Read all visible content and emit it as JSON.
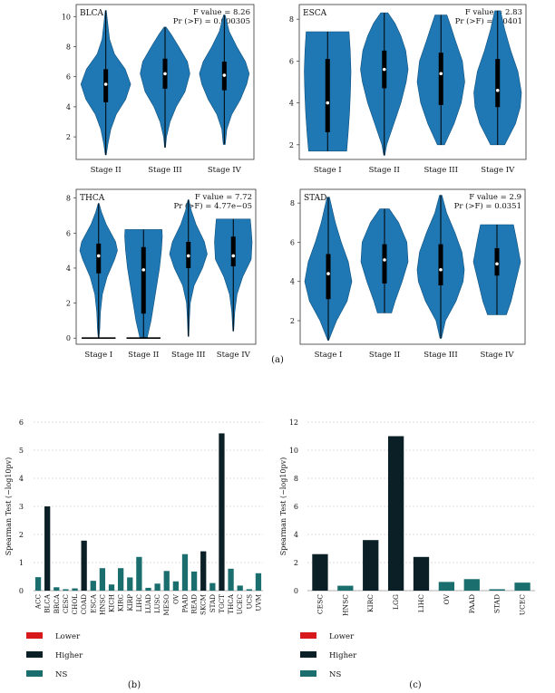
{
  "colors": {
    "violin": "#1f78b4",
    "violin_stroke": "#0d4f7d",
    "box": "#000000",
    "median": "#ffffff",
    "grid": "#bbbbbb",
    "lower": "#d7191c",
    "higher": "#0b1f26",
    "ns": "#1b6e6e"
  },
  "captions": {
    "a": "(a)",
    "b": "(b)",
    "c": "(c)"
  },
  "chart_data": [
    {
      "type": "violin",
      "panel": "BLCA",
      "title": "BLCA",
      "f_label": "F value = 8.26",
      "p_label": "Pr (>F) = 0.000305",
      "ylim": [
        0.5,
        10.8
      ],
      "yticks": [
        2,
        4,
        6,
        8,
        10
      ],
      "categories": [
        "Stage II",
        "Stage III",
        "Stage IV"
      ],
      "groups": [
        {
          "label": "Stage II",
          "min": 0.8,
          "max": 10.4,
          "q1": 4.3,
          "median": 5.5,
          "q3": 6.5,
          "shape": [
            [
              0.8,
              0.02
            ],
            [
              1.5,
              0.08
            ],
            [
              2.5,
              0.2
            ],
            [
              3.5,
              0.42
            ],
            [
              4.5,
              0.8
            ],
            [
              5.5,
              1.0
            ],
            [
              6.5,
              0.78
            ],
            [
              7.5,
              0.35
            ],
            [
              8.5,
              0.15
            ],
            [
              9.5,
              0.08
            ],
            [
              10.4,
              0.02
            ]
          ]
        },
        {
          "label": "Stage III",
          "min": 1.3,
          "max": 9.3,
          "q1": 5.2,
          "median": 6.2,
          "q3": 7.2,
          "shape": [
            [
              1.3,
              0.02
            ],
            [
              2,
              0.06
            ],
            [
              3,
              0.2
            ],
            [
              4,
              0.45
            ],
            [
              5,
              0.8
            ],
            [
              6.2,
              1.0
            ],
            [
              7,
              0.9
            ],
            [
              8,
              0.55
            ],
            [
              8.8,
              0.25
            ],
            [
              9.3,
              0.04
            ]
          ]
        },
        {
          "label": "Stage IV",
          "min": 1.5,
          "max": 10.1,
          "q1": 5.1,
          "median": 6.1,
          "q3": 7.0,
          "shape": [
            [
              1.5,
              0.04
            ],
            [
              2.5,
              0.1
            ],
            [
              3.5,
              0.3
            ],
            [
              4.5,
              0.65
            ],
            [
              5.5,
              0.9
            ],
            [
              6.2,
              1.0
            ],
            [
              7,
              0.85
            ],
            [
              8,
              0.5
            ],
            [
              9,
              0.2
            ],
            [
              10.1,
              0.03
            ]
          ]
        }
      ]
    },
    {
      "type": "violin",
      "panel": "ESCA",
      "title": "ESCA",
      "f_label": "F value = 2.83",
      "p_label": "Pr (>F) = 0.0401",
      "ylim": [
        1.3,
        8.7
      ],
      "yticks": [
        2,
        4,
        6,
        8
      ],
      "categories": [
        "Stage I",
        "Stage II",
        "Stage III",
        "Stage IV"
      ],
      "groups": [
        {
          "label": "Stage I",
          "min": 1.7,
          "max": 7.4,
          "q1": 2.6,
          "median": 4.0,
          "q3": 6.1,
          "shape": [
            [
              1.7,
              0.8
            ],
            [
              2.5,
              0.86
            ],
            [
              3.5,
              0.92
            ],
            [
              4.5,
              0.96
            ],
            [
              5.5,
              0.98
            ],
            [
              6.5,
              0.95
            ],
            [
              7.4,
              0.9
            ]
          ]
        },
        {
          "label": "Stage II",
          "min": 1.5,
          "max": 8.3,
          "q1": 4.7,
          "median": 5.6,
          "q3": 6.5,
          "shape": [
            [
              1.5,
              0.02
            ],
            [
              2,
              0.1
            ],
            [
              3,
              0.4
            ],
            [
              4,
              0.7
            ],
            [
              5,
              0.92
            ],
            [
              5.6,
              1.0
            ],
            [
              6.5,
              0.9
            ],
            [
              7.2,
              0.7
            ],
            [
              7.8,
              0.45
            ],
            [
              8.3,
              0.15
            ]
          ]
        },
        {
          "label": "Stage III",
          "min": 2.0,
          "max": 8.2,
          "q1": 3.9,
          "median": 5.4,
          "q3": 6.4,
          "shape": [
            [
              2,
              0.15
            ],
            [
              3,
              0.55
            ],
            [
              4,
              0.85
            ],
            [
              5,
              1.0
            ],
            [
              6,
              0.9
            ],
            [
              7,
              0.6
            ],
            [
              7.7,
              0.4
            ],
            [
              8.2,
              0.25
            ]
          ]
        },
        {
          "label": "Stage IV",
          "min": 2.0,
          "max": 8.4,
          "q1": 3.8,
          "median": 4.6,
          "q3": 6.1,
          "shape": [
            [
              2,
              0.3
            ],
            [
              3,
              0.75
            ],
            [
              3.8,
              0.95
            ],
            [
              4.5,
              1.0
            ],
            [
              5.5,
              0.85
            ],
            [
              6.5,
              0.55
            ],
            [
              7.5,
              0.3
            ],
            [
              8.4,
              0.12
            ]
          ]
        }
      ]
    },
    {
      "type": "violin",
      "panel": "THCA",
      "title": "THCA",
      "f_label": "F value = 7.72",
      "p_label": "Pr (>F) = 4.77e−05",
      "ylim": [
        -0.35,
        8.5
      ],
      "yticks": [
        0,
        2,
        4,
        6,
        8
      ],
      "categories": [
        "Stage I",
        "Stage II",
        "Stage III",
        "Stage IV"
      ],
      "groups": [
        {
          "label": "Stage I",
          "min": 0.05,
          "max": 7.7,
          "q1": 3.7,
          "median": 4.7,
          "q3": 5.4,
          "zero_bar": true,
          "shape": [
            [
              0.05,
              0.02
            ],
            [
              0.5,
              0.06
            ],
            [
              1.5,
              0.1
            ],
            [
              2.5,
              0.2
            ],
            [
              3.5,
              0.45
            ],
            [
              4.5,
              0.85
            ],
            [
              5,
              1.0
            ],
            [
              5.5,
              0.9
            ],
            [
              6.5,
              0.4
            ],
            [
              7.2,
              0.15
            ],
            [
              7.7,
              0.02
            ]
          ]
        },
        {
          "label": "Stage II",
          "min": 0.05,
          "max": 6.2,
          "q1": 1.4,
          "median": 3.9,
          "q3": 5.2,
          "zero_bar": true,
          "shape": [
            [
              0.05,
              0.2
            ],
            [
              1,
              0.4
            ],
            [
              2,
              0.55
            ],
            [
              3,
              0.7
            ],
            [
              4,
              0.85
            ],
            [
              5,
              0.95
            ],
            [
              5.8,
              1.0
            ],
            [
              6.2,
              0.98
            ]
          ]
        },
        {
          "label": "Stage III",
          "min": 0.1,
          "max": 7.9,
          "q1": 4.0,
          "median": 4.7,
          "q3": 5.5,
          "shape": [
            [
              0.1,
              0.02
            ],
            [
              1,
              0.05
            ],
            [
              2,
              0.1
            ],
            [
              3,
              0.3
            ],
            [
              4,
              0.75
            ],
            [
              4.8,
              1.0
            ],
            [
              5.5,
              0.85
            ],
            [
              6.5,
              0.4
            ],
            [
              7.3,
              0.15
            ],
            [
              7.9,
              0.02
            ]
          ]
        },
        {
          "label": "Stage IV",
          "min": 0.4,
          "max": 6.8,
          "q1": 4.1,
          "median": 4.7,
          "q3": 5.8,
          "shape": [
            [
              0.4,
              0.02
            ],
            [
              1.5,
              0.08
            ],
            [
              2.5,
              0.2
            ],
            [
              3.5,
              0.5
            ],
            [
              4.5,
              0.95
            ],
            [
              5.5,
              1.0
            ],
            [
              6.2,
              0.95
            ],
            [
              6.8,
              0.9
            ]
          ]
        }
      ]
    },
    {
      "type": "violin",
      "panel": "STAD",
      "title": "STAD",
      "f_label": "F value = 2.9",
      "p_label": "Pr (>F) = 0.0351",
      "ylim": [
        0.8,
        8.7
      ],
      "yticks": [
        2,
        4,
        6,
        8
      ],
      "categories": [
        "Stage I",
        "Stage II",
        "Stage III",
        "Stage IV"
      ],
      "groups": [
        {
          "label": "Stage I",
          "min": 1.0,
          "max": 8.3,
          "q1": 3.1,
          "median": 4.4,
          "q3": 5.4,
          "shape": [
            [
              1,
              0.02
            ],
            [
              2,
              0.35
            ],
            [
              3,
              0.8
            ],
            [
              4,
              1.0
            ],
            [
              5,
              0.85
            ],
            [
              6,
              0.55
            ],
            [
              7,
              0.3
            ],
            [
              8.3,
              0.05
            ]
          ]
        },
        {
          "label": "Stage II",
          "min": 2.4,
          "max": 7.7,
          "q1": 3.9,
          "median": 5.1,
          "q3": 5.9,
          "shape": [
            [
              2.4,
              0.3
            ],
            [
              3,
              0.45
            ],
            [
              4,
              0.75
            ],
            [
              5,
              1.0
            ],
            [
              6,
              0.95
            ],
            [
              7,
              0.6
            ],
            [
              7.7,
              0.2
            ]
          ]
        },
        {
          "label": "Stage III",
          "min": 1.1,
          "max": 8.4,
          "q1": 3.8,
          "median": 4.6,
          "q3": 5.9,
          "shape": [
            [
              1.1,
              0.03
            ],
            [
              2,
              0.2
            ],
            [
              3,
              0.65
            ],
            [
              4,
              0.95
            ],
            [
              4.6,
              1.0
            ],
            [
              5.5,
              0.9
            ],
            [
              6.5,
              0.6
            ],
            [
              7.5,
              0.25
            ],
            [
              8.4,
              0.05
            ]
          ]
        },
        {
          "label": "Stage IV",
          "min": 2.3,
          "max": 6.9,
          "q1": 4.3,
          "median": 4.9,
          "q3": 5.7,
          "shape": [
            [
              2.3,
              0.4
            ],
            [
              3,
              0.6
            ],
            [
              4,
              0.8
            ],
            [
              5,
              1.0
            ],
            [
              6,
              0.85
            ],
            [
              6.9,
              0.7
            ]
          ]
        }
      ]
    },
    {
      "type": "bar",
      "panel": "b",
      "ylabel": "Spearman Test (−log10pv)",
      "ylim": [
        0,
        6
      ],
      "yticks": [
        0,
        1,
        2,
        3,
        4,
        5,
        6
      ],
      "categories": [
        "ACC",
        "BLCA",
        "BRCA",
        "CESC",
        "CHOL",
        "COAD",
        "ESCA",
        "HNSC",
        "KICH",
        "KIRC",
        "KIRP",
        "LIHC",
        "LUAD",
        "LUSC",
        "MESO",
        "OV",
        "PAAD",
        "READ",
        "SKCM",
        "STAD",
        "TGCT",
        "THCA",
        "UCEC",
        "UCS",
        "UVM"
      ],
      "values": [
        0.48,
        3.0,
        0.12,
        0.05,
        0.08,
        1.78,
        0.35,
        0.8,
        0.22,
        0.8,
        0.47,
        1.2,
        0.1,
        0.25,
        0.7,
        0.33,
        1.3,
        0.68,
        1.4,
        0.27,
        5.6,
        0.78,
        0.18,
        0.05,
        0.62
      ],
      "groups": [
        "NS",
        "Higher",
        "NS",
        "NS",
        "NS",
        "Higher",
        "NS",
        "NS",
        "NS",
        "NS",
        "NS",
        "NS",
        "NS",
        "NS",
        "NS",
        "NS",
        "NS",
        "NS",
        "Higher",
        "NS",
        "Higher",
        "NS",
        "NS",
        "NS",
        "NS"
      ],
      "legend": [
        {
          "label": "Lower",
          "key": "lower"
        },
        {
          "label": "Higher",
          "key": "higher"
        },
        {
          "label": "NS",
          "key": "ns"
        }
      ]
    },
    {
      "type": "bar",
      "panel": "c",
      "ylabel": "Spearman Test (−log10pv)",
      "ylim": [
        0,
        12
      ],
      "yticks": [
        0,
        2,
        4,
        6,
        8,
        10,
        12
      ],
      "categories": [
        "CESC",
        "HNSC",
        "KIRC",
        "LGG",
        "LIHC",
        "OV",
        "PAAD",
        "STAD",
        "UCEC"
      ],
      "values": [
        2.6,
        0.35,
        3.6,
        11.0,
        2.4,
        0.62,
        0.82,
        0.1,
        0.57
      ],
      "groups": [
        "Higher",
        "NS",
        "Higher",
        "Higher",
        "Higher",
        "NS",
        "NS",
        "NS",
        "NS"
      ],
      "legend": [
        {
          "label": "Lower",
          "key": "lower"
        },
        {
          "label": "Higher",
          "key": "higher"
        },
        {
          "label": "NS",
          "key": "ns"
        }
      ]
    }
  ]
}
